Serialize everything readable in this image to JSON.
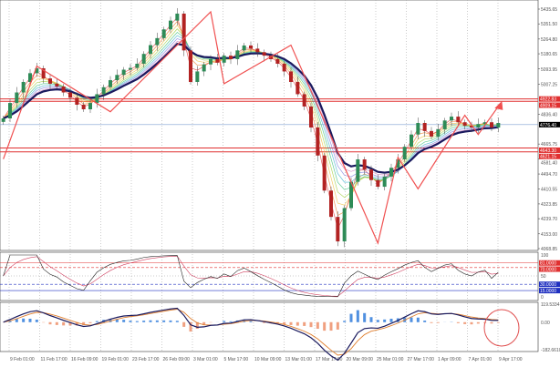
{
  "chart_data": {
    "type": "candlestick",
    "x_tick_labels": [
      "9 Feb 01:00",
      "11 Feb 17:00",
      "16 Feb 09:00",
      "19 Feb 01:00",
      "23 Feb 17:00",
      "26 Feb 09:00",
      "3 Mar 01:00",
      "5 Mar 17:00",
      "10 Mar 09:00",
      "13 Mar 01:00",
      "17 Mar 17:00",
      "20 Mar 09:00",
      "25 Mar 01:00",
      "27 Mar 17:00",
      "1 Apr 09:00",
      "7 Apr 01:00",
      "9 Apr 17:00"
    ],
    "price_axis": {
      "ylim": [
        4068.85,
        5435.65
      ],
      "ticks": [
        "5435.65",
        "5351.50",
        "5264.80",
        "5180.65",
        "5093.95",
        "5007.25",
        "4836.40",
        "4665.75",
        "4581.40",
        "4494.70",
        "4410.55",
        "4323.85",
        "4239.70",
        "4153.00",
        "4068.85"
      ]
    },
    "closes": [
      4812,
      4900,
      4960,
      5020,
      5070,
      5098,
      5040,
      5010,
      4994,
      4960,
      4930,
      4890,
      4864,
      4900,
      4950,
      4990,
      5030,
      5060,
      5090,
      5100,
      5124,
      5180,
      5230,
      5270,
      5320,
      5370,
      5410,
      5200,
      5020,
      5080,
      5120,
      5150,
      5130,
      5170,
      5150,
      5200,
      5228,
      5210,
      5190,
      5170,
      5150,
      5124,
      5080,
      5020,
      4950,
      4880,
      4760,
      4600,
      4400,
      4250,
      4110,
      4300,
      4450,
      4578,
      4520,
      4460,
      4422,
      4480,
      4530,
      4578,
      4650,
      4720,
      4786,
      4740,
      4708,
      4750,
      4800,
      4822,
      4790,
      4770,
      4760,
      4780,
      4790,
      4760,
      4786
    ],
    "levels": [
      {
        "price": 4922.83,
        "label": "4922.83",
        "color": "#e03030"
      },
      {
        "price": 4909.15,
        "label": "4909.15",
        "color": "#e03030"
      },
      {
        "price": 4776.4,
        "label": "4776.40",
        "color": "#7f9fd0",
        "badge": "#000000"
      },
      {
        "price": 4643.3,
        "label": "4643.30",
        "color": "#e03030"
      },
      {
        "price": 4621.15,
        "label": "4621.15",
        "color": "#e03030"
      }
    ],
    "zigzag": [
      [
        0,
        4580
      ],
      [
        5,
        5110
      ],
      [
        16,
        4850
      ],
      [
        31,
        5420
      ],
      [
        33,
        5010
      ],
      [
        43,
        5230
      ],
      [
        56,
        4100
      ],
      [
        59,
        4590
      ],
      [
        62,
        4410
      ],
      [
        69,
        4830
      ],
      [
        71,
        4720
      ],
      [
        74,
        4880
      ]
    ],
    "colors": {
      "bull": "#2e8b57",
      "bear": "#b22222",
      "ma_main": "#1a1a5e",
      "zigzag": "#f05050"
    },
    "rsi": {
      "ylim": [
        0,
        100
      ],
      "ticks": [
        "100",
        "50",
        "0"
      ],
      "levels": [
        {
          "v": 81,
          "label": "81.0000",
          "color": "#e03030"
        },
        {
          "v": 70,
          "label": "70.0000",
          "color": "#e03030"
        },
        {
          "v": 30,
          "label": "30.0000",
          "color": "#2030c0"
        },
        {
          "v": 15,
          "label": "15.0000",
          "color": "#2030c0"
        }
      ]
    },
    "macd": {
      "ticks": [
        "119.5334",
        "0.00",
        "-182.6610"
      ],
      "ylim": [
        -182.661,
        119.5334
      ]
    }
  }
}
